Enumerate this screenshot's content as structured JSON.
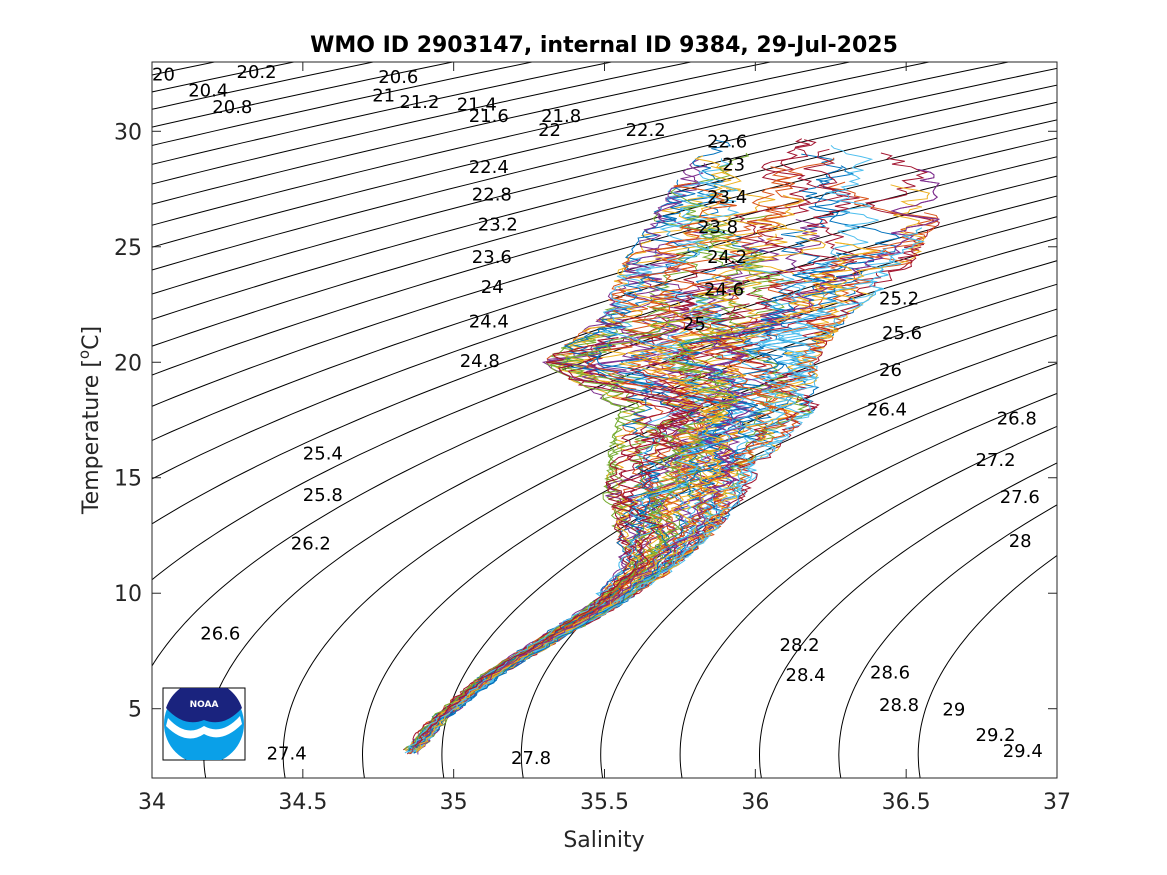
{
  "chart_data": {
    "type": "scatter",
    "title": "WMO ID 2903147, internal ID 9384, 29-Jul-2025",
    "xlabel": "Salinity",
    "ylabel_main": "Temperature [",
    "ylabel_sup": "o",
    "ylabel_end": "C]",
    "xlim": [
      34,
      37
    ],
    "ylim": [
      2,
      33
    ],
    "xticks": [
      34,
      34.5,
      35,
      35.5,
      36,
      36.5,
      37
    ],
    "xtick_labels": [
      "34",
      "34.5",
      "35",
      "35.5",
      "36",
      "36.5",
      "37"
    ],
    "yticks": [
      5,
      10,
      15,
      20,
      25,
      30
    ],
    "ytick_labels": [
      "5",
      "10",
      "15",
      "20",
      "25",
      "30"
    ],
    "grid": false,
    "isopycnal_labels": [
      {
        "text": "20",
        "s": 34.0,
        "t": 32.2
      },
      {
        "text": "20.2",
        "s": 34.28,
        "t": 32.3
      },
      {
        "text": "20.4",
        "s": 34.12,
        "t": 31.5
      },
      {
        "text": "20.8",
        "s": 34.2,
        "t": 30.8
      },
      {
        "text": "20.6",
        "s": 34.75,
        "t": 32.1
      },
      {
        "text": "21",
        "s": 34.73,
        "t": 31.3
      },
      {
        "text": "21.2",
        "s": 34.82,
        "t": 31.0
      },
      {
        "text": "21.4",
        "s": 35.01,
        "t": 30.9
      },
      {
        "text": "21.6",
        "s": 35.05,
        "t": 30.4
      },
      {
        "text": "21.8",
        "s": 35.29,
        "t": 30.4
      },
      {
        "text": "22",
        "s": 35.28,
        "t": 29.8
      },
      {
        "text": "22.2",
        "s": 35.57,
        "t": 29.8
      },
      {
        "text": "22.6",
        "s": 35.84,
        "t": 29.3
      },
      {
        "text": "22.4",
        "s": 35.05,
        "t": 28.2
      },
      {
        "text": "23",
        "s": 35.89,
        "t": 28.3
      },
      {
        "text": "22.8",
        "s": 35.06,
        "t": 27.0
      },
      {
        "text": "23.4",
        "s": 35.84,
        "t": 26.9
      },
      {
        "text": "23.2",
        "s": 35.08,
        "t": 25.7
      },
      {
        "text": "23.8",
        "s": 35.81,
        "t": 25.6
      },
      {
        "text": "23.6",
        "s": 35.06,
        "t": 24.3
      },
      {
        "text": "24.2",
        "s": 35.84,
        "t": 24.3
      },
      {
        "text": "24",
        "s": 35.09,
        "t": 23.0
      },
      {
        "text": "24.6",
        "s": 35.83,
        "t": 22.9
      },
      {
        "text": "24.4",
        "s": 35.05,
        "t": 21.5
      },
      {
        "text": "25",
        "s": 35.76,
        "t": 21.4
      },
      {
        "text": "25.2",
        "s": 36.41,
        "t": 22.5
      },
      {
        "text": "25.6",
        "s": 36.42,
        "t": 21.0
      },
      {
        "text": "24.8",
        "s": 35.02,
        "t": 19.8
      },
      {
        "text": "26",
        "s": 36.41,
        "t": 19.4
      },
      {
        "text": "26.4",
        "s": 36.37,
        "t": 17.7
      },
      {
        "text": "26.8",
        "s": 36.8,
        "t": 17.3
      },
      {
        "text": "27.2",
        "s": 36.73,
        "t": 15.5
      },
      {
        "text": "27.6",
        "s": 36.81,
        "t": 13.9
      },
      {
        "text": "28",
        "s": 36.84,
        "t": 12.0
      },
      {
        "text": "25.4",
        "s": 34.5,
        "t": 15.8
      },
      {
        "text": "25.8",
        "s": 34.5,
        "t": 14.0
      },
      {
        "text": "26.2",
        "s": 34.46,
        "t": 11.9
      },
      {
        "text": "26.6",
        "s": 34.16,
        "t": 8.0
      },
      {
        "text": "28.2",
        "s": 36.08,
        "t": 7.5
      },
      {
        "text": "28.4",
        "s": 36.1,
        "t": 6.2
      },
      {
        "text": "28.6",
        "s": 36.38,
        "t": 6.3
      },
      {
        "text": "28.8",
        "s": 36.41,
        "t": 4.9
      },
      {
        "text": "29",
        "s": 36.62,
        "t": 4.7
      },
      {
        "text": "29.2",
        "s": 36.73,
        "t": 3.6
      },
      {
        "text": "29.4",
        "s": 36.82,
        "t": 2.9
      },
      {
        "text": "27.4",
        "s": 34.38,
        "t": 2.8
      },
      {
        "text": "27.8",
        "s": 35.19,
        "t": 2.6
      }
    ],
    "profile_colors": [
      "#0072BD",
      "#D95319",
      "#EDB120",
      "#7E2F8E",
      "#77AC30",
      "#4DBEEE",
      "#A2142F"
    ],
    "ts_envelope": [
      {
        "t": 3.0,
        "s_min": 34.82,
        "s_max": 34.88
      },
      {
        "t": 4.5,
        "s_min": 34.92,
        "s_max": 34.97
      },
      {
        "t": 6.5,
        "s_min": 35.1,
        "s_max": 35.16
      },
      {
        "t": 8.0,
        "s_min": 35.28,
        "s_max": 35.35
      },
      {
        "t": 9.5,
        "s_min": 35.45,
        "s_max": 35.55
      },
      {
        "t": 11.0,
        "s_min": 35.55,
        "s_max": 35.72
      },
      {
        "t": 12.5,
        "s_min": 35.55,
        "s_max": 35.85
      },
      {
        "t": 14.0,
        "s_min": 35.5,
        "s_max": 35.95
      },
      {
        "t": 16.0,
        "s_min": 35.52,
        "s_max": 36.05
      },
      {
        "t": 18.0,
        "s_min": 35.55,
        "s_max": 36.2
      },
      {
        "t": 20.0,
        "s_min": 35.3,
        "s_max": 36.2
      },
      {
        "t": 22.0,
        "s_min": 35.5,
        "s_max": 36.3
      },
      {
        "t": 24.0,
        "s_min": 35.55,
        "s_max": 36.5
      },
      {
        "t": 26.0,
        "s_min": 35.65,
        "s_max": 36.6
      },
      {
        "t": 28.0,
        "s_min": 35.75,
        "s_max": 36.6
      },
      {
        "t": 30.0,
        "s_min": 35.9,
        "s_max": 36.55
      }
    ]
  },
  "logo": {
    "text": "NOAA",
    "colors": {
      "navy": "#1a237e",
      "blue": "#0aa0e8",
      "white": "#ffffff"
    }
  }
}
